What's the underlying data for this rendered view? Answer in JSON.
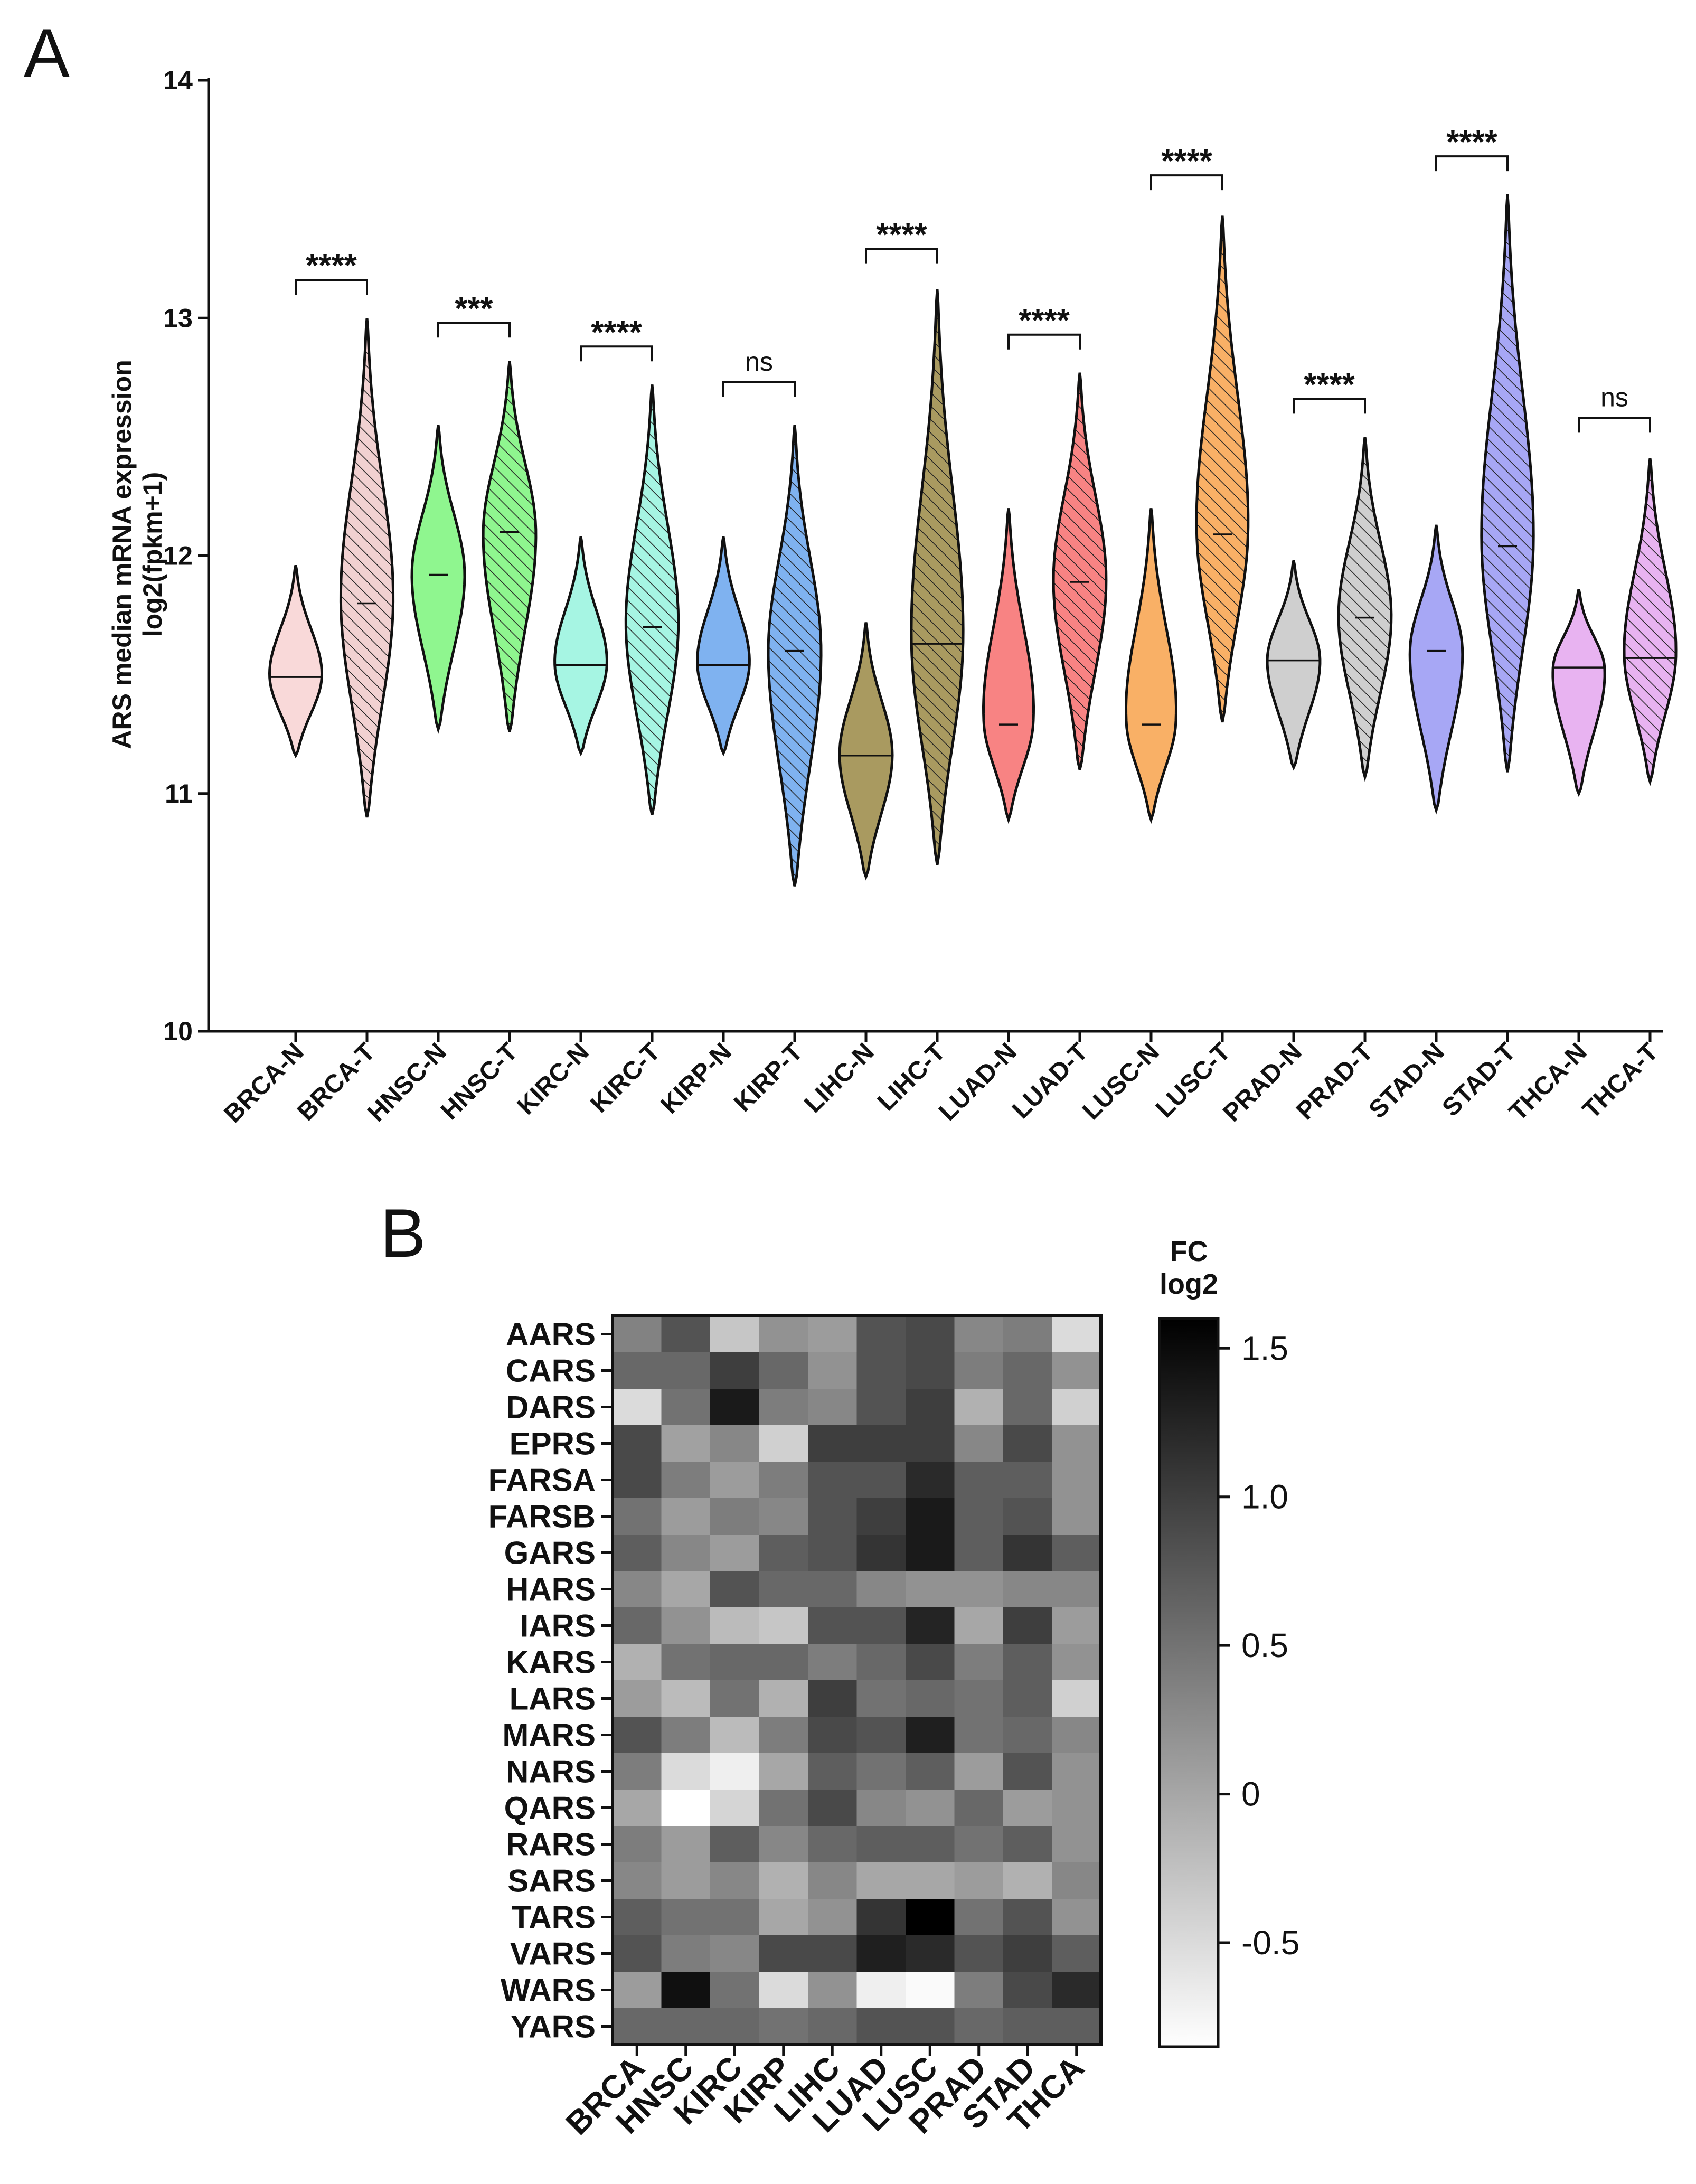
{
  "chart_data": [
    {
      "panel": "A",
      "type": "violin",
      "title": "",
      "xlabel": "",
      "ylabel": [
        "ARS median mRNA expression",
        "log2(fpkm+1)"
      ],
      "ylim": [
        10,
        14
      ],
      "yticks": [
        "10",
        "11",
        "12",
        "13",
        "14"
      ],
      "categories": [
        "BRCA-N",
        "BRCA-T",
        "HNSC-N",
        "HNSC-T",
        "KIRC-N",
        "KIRC-T",
        "KIRP-N",
        "KIRP-T",
        "LIHC-N",
        "LIHC-T",
        "LUAD-N",
        "LUAD-T",
        "LUSC-N",
        "LUSC-T",
        "PRAD-N",
        "PRAD-T",
        "STAD-N",
        "STAD-T",
        "THCA-N",
        "THCA-T"
      ],
      "colors": [
        "#f9d9d9",
        "#f1d1d1",
        "#8ff68f",
        "#8ff68f",
        "#a6f5e3",
        "#a6f5e3",
        "#7fb2f0",
        "#7fb2f0",
        "#a99a60",
        "#a99a60",
        "#f88383",
        "#f88383",
        "#f9b066",
        "#f9b066",
        "#cfcfcf",
        "#cfcfcf",
        "#a7a7f5",
        "#a7a7f5",
        "#e8b3f1",
        "#e8b3f1"
      ],
      "hatched": [
        false,
        true,
        false,
        true,
        false,
        true,
        false,
        true,
        false,
        true,
        false,
        true,
        false,
        true,
        false,
        true,
        false,
        true,
        false,
        true
      ],
      "median": [
        11.49,
        11.8,
        11.92,
        12.1,
        11.54,
        11.7,
        11.54,
        11.6,
        11.16,
        11.63,
        11.29,
        11.89,
        11.29,
        12.09,
        11.56,
        11.74,
        11.6,
        12.04,
        11.53,
        11.57
      ],
      "min": [
        11.16,
        10.9,
        11.27,
        11.26,
        11.17,
        10.91,
        11.17,
        10.61,
        10.65,
        10.7,
        10.89,
        11.1,
        10.89,
        11.3,
        11.11,
        11.07,
        10.93,
        11.09,
        11.0,
        11.05
      ],
      "max": [
        11.96,
        13.0,
        12.55,
        12.82,
        12.08,
        12.72,
        12.08,
        12.55,
        11.72,
        13.12,
        12.2,
        12.77,
        12.2,
        13.43,
        11.98,
        12.5,
        12.13,
        13.52,
        11.86,
        12.41
      ],
      "comparisons": [
        {
          "label": "****",
          "y": 13.16
        },
        {
          "label": "***",
          "y": 12.98
        },
        {
          "label": "****",
          "y": 12.88
        },
        {
          "label": "ns",
          "y": 12.73
        },
        {
          "label": "****",
          "y": 13.29
        },
        {
          "label": "****",
          "y": 12.93
        },
        {
          "label": "****",
          "y": 13.6
        },
        {
          "label": "****",
          "y": 12.66
        },
        {
          "label": "****",
          "y": 13.68
        },
        {
          "label": "ns",
          "y": 12.58
        }
      ]
    },
    {
      "panel": "B",
      "type": "heatmap",
      "rows": [
        "AARS",
        "CARS",
        "DARS",
        "EPRS",
        "FARSA",
        "FARSB",
        "GARS",
        "HARS",
        "IARS",
        "KARS",
        "LARS",
        "MARS",
        "NARS",
        "QARS",
        "RARS",
        "SARS",
        "TARS",
        "VARS",
        "WARS",
        "YARS"
      ],
      "columns": [
        "BRCA",
        "HNSC",
        "KIRC",
        "KIRP",
        "LIHC",
        "LUAD",
        "LUSC",
        "PRAD",
        "STAD",
        "THCA"
      ],
      "values": [
        [
          0.35,
          0.8,
          -0.3,
          0.2,
          0.1,
          0.8,
          0.9,
          0.3,
          0.4,
          -0.5
        ],
        [
          0.6,
          0.6,
          1.0,
          0.6,
          0.2,
          0.8,
          0.9,
          0.4,
          0.6,
          0.2
        ],
        [
          -0.5,
          0.5,
          1.35,
          0.4,
          0.3,
          0.8,
          1.0,
          -0.1,
          0.6,
          -0.4
        ],
        [
          0.9,
          0.05,
          0.3,
          -0.4,
          1.0,
          1.0,
          1.0,
          0.3,
          0.9,
          0.2
        ],
        [
          0.9,
          0.4,
          0.1,
          0.4,
          0.8,
          0.8,
          1.2,
          0.7,
          0.7,
          0.2
        ],
        [
          0.5,
          0.1,
          0.4,
          0.3,
          0.8,
          1.0,
          1.35,
          0.7,
          0.8,
          0.2
        ],
        [
          0.7,
          0.3,
          0.1,
          0.7,
          0.8,
          1.1,
          1.35,
          0.7,
          1.1,
          0.7
        ],
        [
          0.3,
          0.0,
          0.8,
          0.6,
          0.6,
          0.3,
          0.2,
          0.2,
          0.3,
          0.3
        ],
        [
          0.6,
          0.2,
          -0.2,
          -0.3,
          0.8,
          0.8,
          1.25,
          0.0,
          1.0,
          0.1
        ],
        [
          -0.1,
          0.5,
          0.6,
          0.6,
          0.4,
          0.6,
          0.9,
          0.4,
          0.7,
          0.2
        ],
        [
          0.1,
          -0.2,
          0.5,
          -0.1,
          1.0,
          0.5,
          0.6,
          0.5,
          0.7,
          -0.4
        ],
        [
          0.8,
          0.4,
          -0.2,
          0.4,
          0.9,
          0.8,
          1.3,
          0.5,
          0.6,
          0.3
        ],
        [
          0.4,
          -0.5,
          -0.7,
          0.0,
          0.7,
          0.5,
          0.7,
          0.1,
          0.8,
          0.2
        ],
        [
          0.0,
          -0.85,
          -0.45,
          0.5,
          0.9,
          0.3,
          0.2,
          0.6,
          0.1,
          0.2
        ],
        [
          0.4,
          0.1,
          0.7,
          0.3,
          0.6,
          0.7,
          0.7,
          0.5,
          0.7,
          0.2
        ],
        [
          0.3,
          0.1,
          0.3,
          -0.1,
          0.3,
          0.0,
          0.0,
          0.1,
          -0.1,
          0.3
        ],
        [
          0.7,
          0.5,
          0.5,
          0.0,
          0.2,
          1.1,
          1.6,
          0.5,
          0.8,
          0.2
        ],
        [
          0.8,
          0.4,
          0.3,
          0.9,
          0.9,
          1.3,
          1.2,
          0.8,
          1.0,
          0.7
        ],
        [
          0.1,
          1.45,
          0.5,
          -0.5,
          0.2,
          -0.7,
          -0.8,
          0.4,
          0.9,
          1.2
        ],
        [
          0.6,
          0.6,
          0.6,
          0.5,
          0.6,
          0.8,
          0.8,
          0.6,
          0.7,
          0.7
        ]
      ],
      "colorbar": {
        "title": [
          "FC",
          "log2"
        ],
        "range": [
          -0.85,
          1.6
        ],
        "ticks": [
          "1.5",
          "1.0",
          "0.5",
          "0",
          "-0.5"
        ],
        "tick_values": [
          1.5,
          1.0,
          0.5,
          0,
          -0.5
        ],
        "colors": [
          "#ffffff",
          "#000000"
        ]
      }
    }
  ]
}
